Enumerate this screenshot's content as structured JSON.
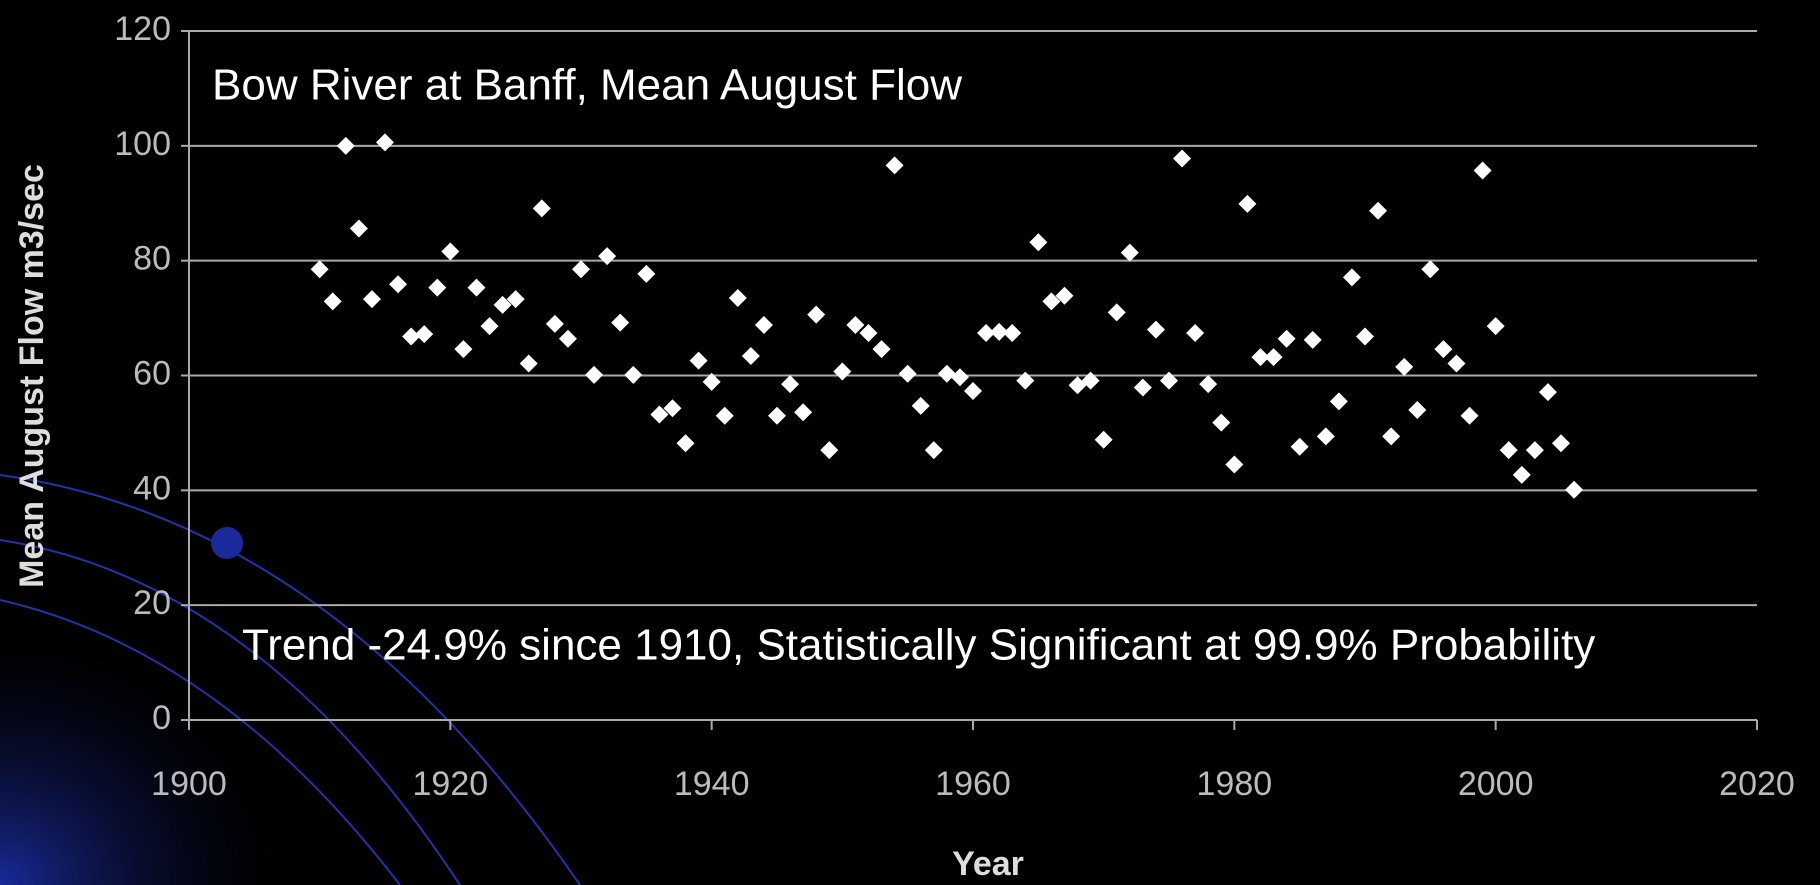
{
  "chart_data": {
    "type": "scatter",
    "title": "Bow River at Banff, Mean August Flow",
    "annotation": "Trend -24.9% since 1910, Statistically Significant at 99.9% Probability",
    "x_label": "Year",
    "y_label": "Mean August Flow m3/sec",
    "color": "#ffffff",
    "grid": true,
    "xlim": [
      1900,
      2020
    ],
    "xticks": [
      1900,
      1920,
      1940,
      1960,
      1980,
      2000,
      2020
    ],
    "ylim": [
      0,
      120
    ],
    "yticks": [
      0,
      20,
      40,
      60,
      80,
      100,
      120
    ],
    "series": [
      {
        "name": "Mean August Flow",
        "color": "#ffffff",
        "x": [
          1910,
          1911,
          1912,
          1913,
          1914,
          1915,
          1916,
          1917,
          1918,
          1919,
          1920,
          1921,
          1922,
          1923,
          1924,
          1925,
          1926,
          1927,
          1928,
          1929,
          1930,
          1931,
          1932,
          1933,
          1934,
          1935,
          1936,
          1937,
          1938,
          1939,
          1940,
          1941,
          1942,
          1943,
          1944,
          1945,
          1946,
          1947,
          1948,
          1949,
          1950,
          1951,
          1952,
          1953,
          1954,
          1955,
          1956,
          1957,
          1958,
          1959,
          1960,
          1961,
          1962,
          1963,
          1964,
          1965,
          1966,
          1967,
          1968,
          1969,
          1970,
          1971,
          1972,
          1973,
          1974,
          1975,
          1976,
          1977,
          1978,
          1979,
          1980,
          1981,
          1982,
          1983,
          1984,
          1985,
          1986,
          1987,
          1988,
          1989,
          1990,
          1991,
          1992,
          1993,
          1994,
          1995,
          1996,
          1997,
          1998,
          1999,
          2000,
          2001,
          2002,
          2003,
          2004,
          2005,
          2006
        ],
        "values": [
          78.5,
          72.9,
          100,
          85.6,
          73.3,
          100.6,
          75.9,
          66.8,
          67.2,
          75.3,
          81.6,
          64.6,
          75.3,
          68.6,
          72.3,
          73.3,
          62.1,
          89.1,
          69,
          66.4,
          78.5,
          60.1,
          80.8,
          69.2,
          60.1,
          77.7,
          53.2,
          54.3,
          48.2,
          62.6,
          58.9,
          53,
          73.5,
          63.4,
          68.8,
          53,
          58.5,
          53.6,
          70.6,
          47,
          60.7,
          68.8,
          67.4,
          64.6,
          96.6,
          60.3,
          54.7,
          47,
          60.3,
          59.7,
          57.3,
          67.4,
          67.6,
          67.4,
          59.1,
          83.2,
          72.9,
          73.9,
          58.3,
          59.1,
          48.8,
          71,
          81.4,
          57.9,
          68,
          59.1,
          97.8,
          67.4,
          58.5,
          51.8,
          44.5,
          89.9,
          63.2,
          63.2,
          66.4,
          47.6,
          66.2,
          49.4,
          55.5,
          77.1,
          66.8,
          88.7,
          49.4,
          61.5,
          54,
          78.5,
          64.6,
          62.1,
          53,
          95.7,
          68.6,
          47,
          42.7,
          47,
          57.1,
          48.2,
          40.1
        ]
      }
    ]
  }
}
